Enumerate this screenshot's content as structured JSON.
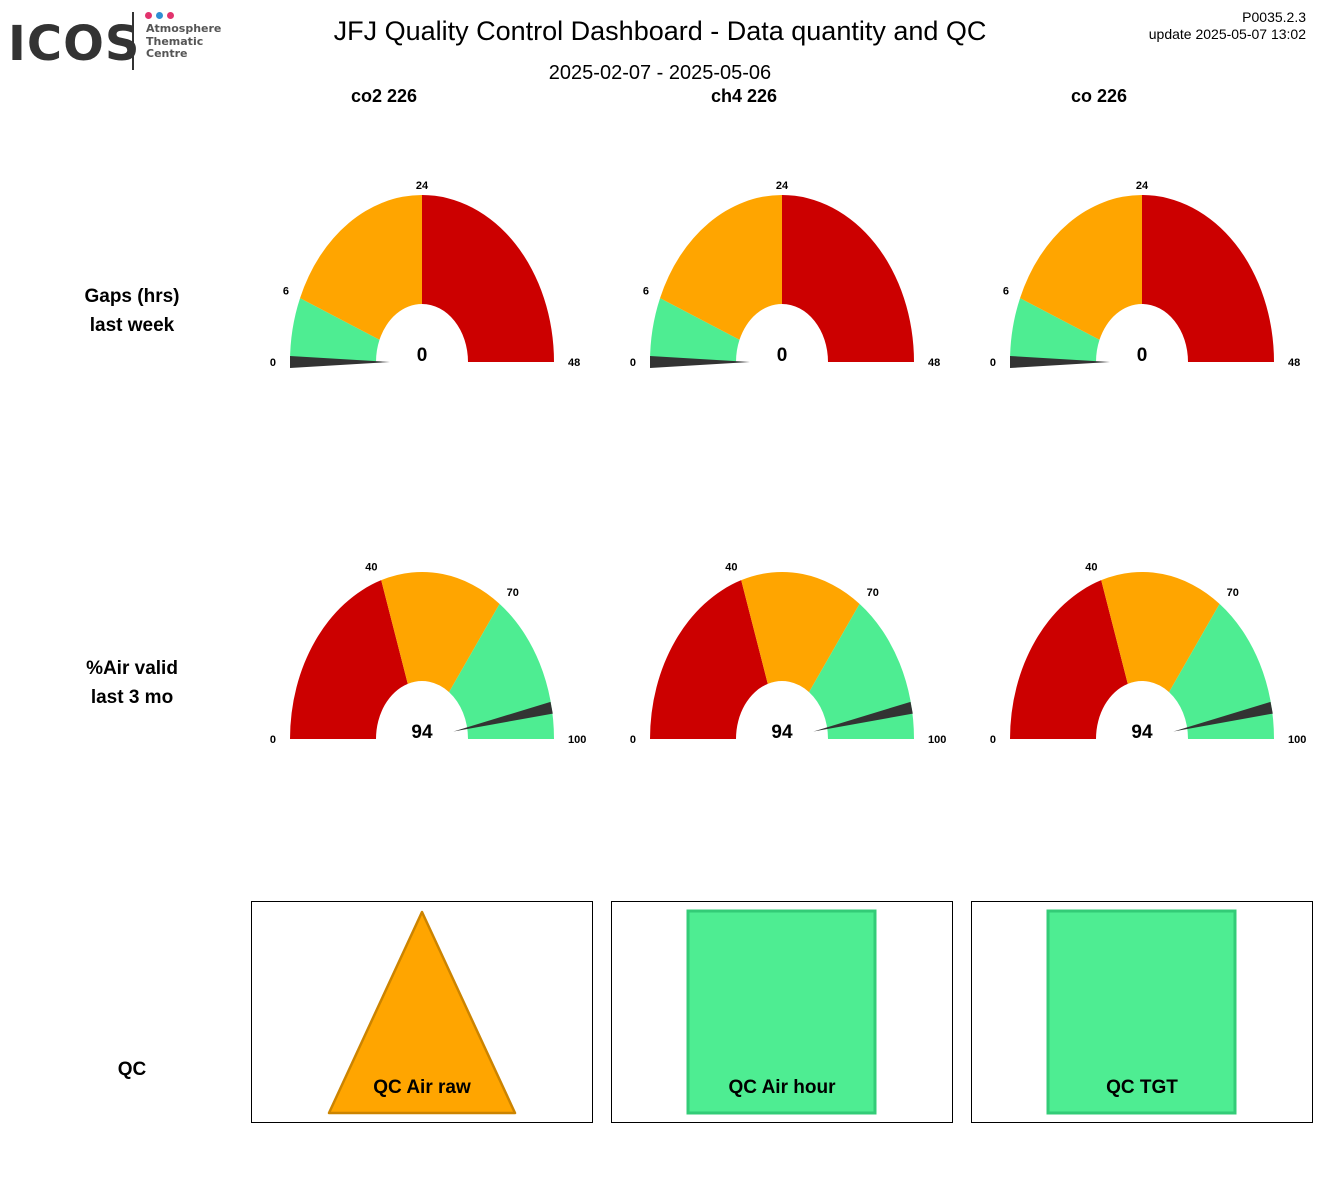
{
  "header": {
    "logo_word": "ICOS",
    "logo_text": [
      "Atmosphere",
      "Thematic",
      "Centre"
    ],
    "logo_dot_colors": [
      "#e2336d",
      "#2f8fd3",
      "#e2336d"
    ],
    "title": "JFJ  Quality Control Dashboard - Data quantity and QC",
    "date_range": "2025-02-07 - 2025-05-06",
    "version": "P0035.2.3",
    "update": "update  2025-05-07 13:02"
  },
  "columns": [
    "co2 226",
    "ch4 226",
    "co 226"
  ],
  "rows": {
    "gaps_label": [
      "Gaps (hrs)",
      "last week"
    ],
    "air_label": [
      "%Air valid",
      "last 3 mo"
    ],
    "qc_label": "QC"
  },
  "colors": {
    "red": "#cc0000",
    "orange": "#ffa500",
    "green": "#4eed92",
    "needle": "#333333",
    "qc_orange_border": "#cc8400",
    "qc_green_border": "#33cc77"
  },
  "chart_data": [
    {
      "type": "gauge",
      "metric": "Gaps (hrs) last week",
      "range": [
        0,
        48
      ],
      "ticks": [
        0,
        6,
        24,
        48
      ],
      "bands": [
        {
          "from": 0,
          "to": 6,
          "color": "green"
        },
        {
          "from": 6,
          "to": 24,
          "color": "orange"
        },
        {
          "from": 24,
          "to": 48,
          "color": "red"
        }
      ],
      "values": {
        "co2 226": 0,
        "ch4 226": 0,
        "co 226": 0
      }
    },
    {
      "type": "gauge",
      "metric": "%Air valid last 3 mo",
      "range": [
        0,
        100
      ],
      "ticks": [
        0,
        40,
        70,
        100
      ],
      "bands": [
        {
          "from": 0,
          "to": 40,
          "color": "red"
        },
        {
          "from": 40,
          "to": 70,
          "color": "orange"
        },
        {
          "from": 70,
          "to": 100,
          "color": "green"
        }
      ],
      "values": {
        "co2 226": 94,
        "ch4 226": 94,
        "co 226": 94
      }
    }
  ],
  "qc": [
    {
      "label": "QC Air raw",
      "shape": "triangle",
      "status": "orange"
    },
    {
      "label": "QC Air hour",
      "shape": "square",
      "status": "green"
    },
    {
      "label": "QC TGT",
      "shape": "square",
      "status": "green"
    }
  ]
}
